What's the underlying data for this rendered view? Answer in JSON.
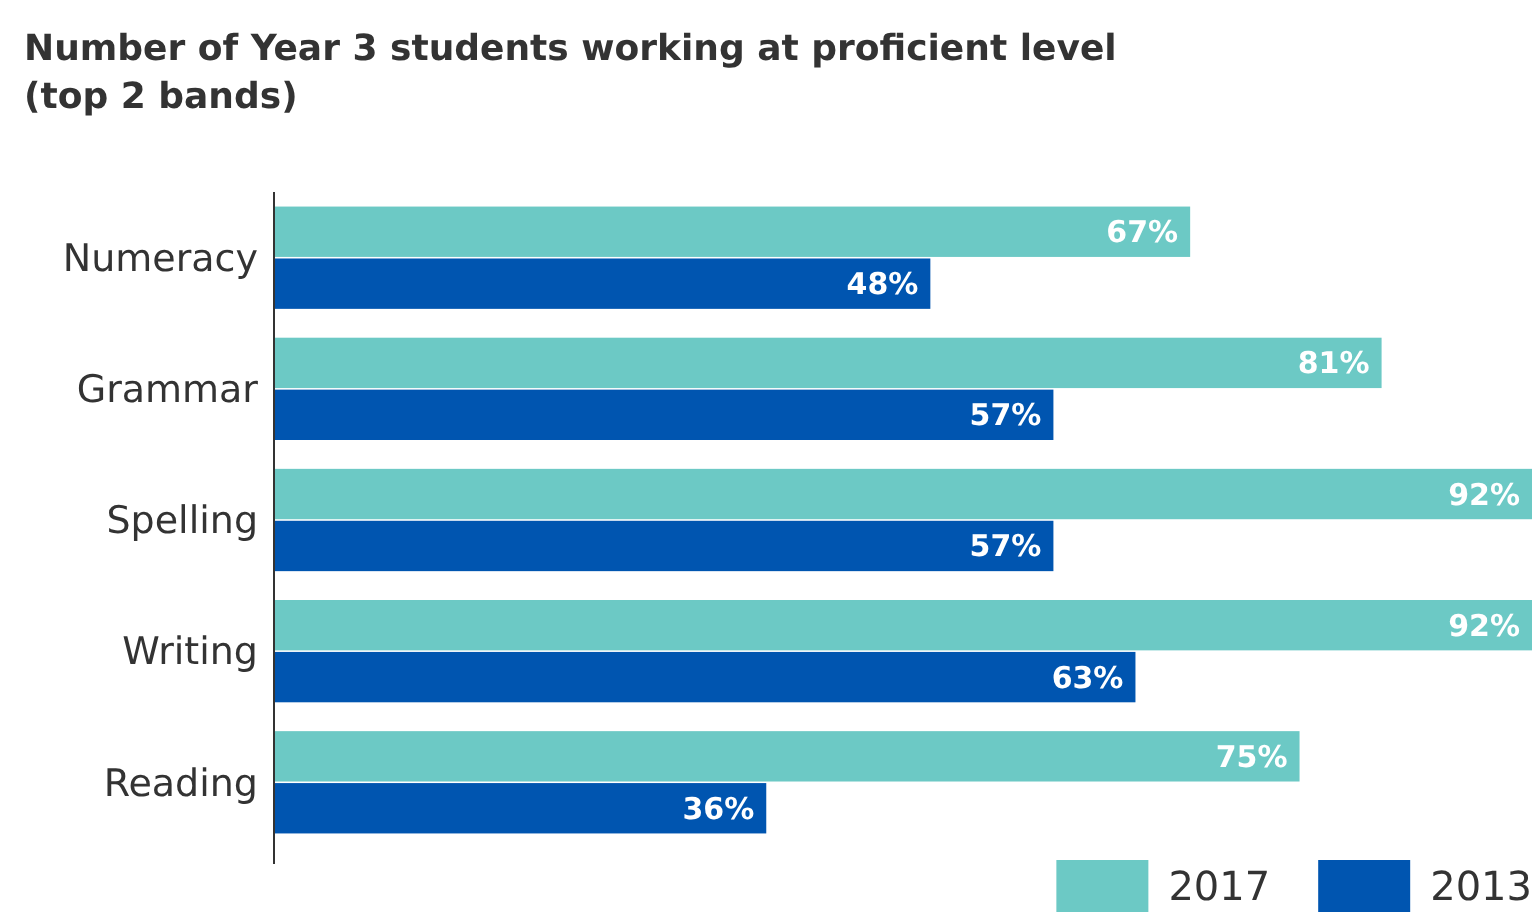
{
  "chart_data": {
    "type": "bar",
    "orientation": "horizontal",
    "title": "Number of Year 3 students working at proficient level (top 2 bands)",
    "categories": [
      "Numeracy",
      "Grammar",
      "Spelling",
      "Writing",
      "Reading"
    ],
    "series": [
      {
        "name": "2017",
        "color": "#6cc9c5",
        "values": [
          67,
          81,
          92,
          92,
          75
        ],
        "value_labels": [
          "67%",
          "81%",
          "92%",
          "92%",
          "75%"
        ]
      },
      {
        "name": "2013",
        "color": "#0055b0",
        "values": [
          48,
          57,
          57,
          63,
          36
        ],
        "value_labels": [
          "48%",
          "57%",
          "57%",
          "63%",
          "36%"
        ]
      }
    ],
    "legend": "bottom right"
  }
}
